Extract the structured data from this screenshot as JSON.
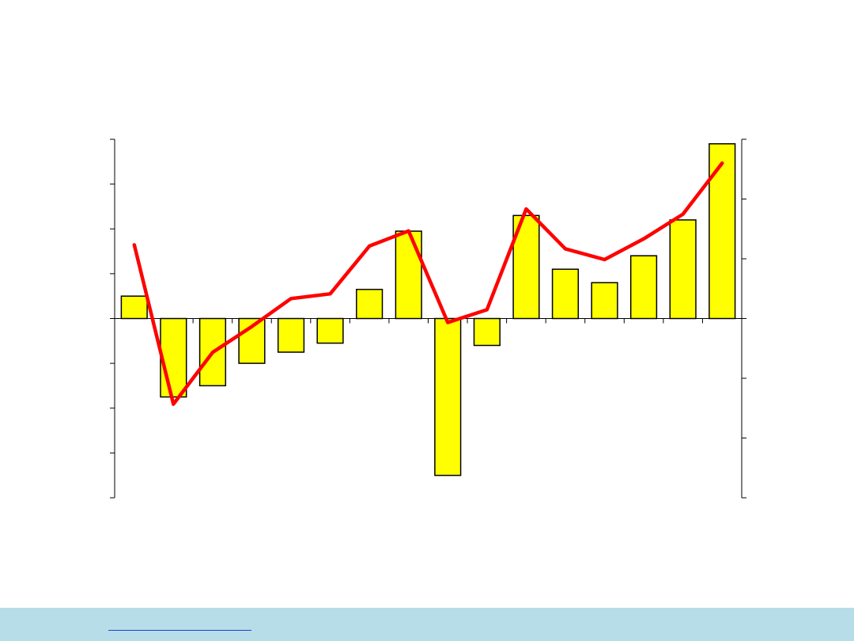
{
  "chart_data": {
    "type": "bar+line",
    "title": "",
    "categories": [
      "",
      "",
      "",
      "",
      "",
      "",
      "",
      "",
      "",
      "",
      "",
      "",
      "",
      "",
      "",
      ""
    ],
    "series": [
      {
        "type": "bar",
        "axis": "left",
        "color": "#ffff00",
        "values": [
          1.0,
          -3.5,
          -3.0,
          -2.0,
          -1.5,
          -1.1,
          1.3,
          3.9,
          -7.0,
          -1.2,
          4.6,
          2.2,
          1.6,
          2.8,
          4.4,
          7.8
        ]
      },
      {
        "type": "line",
        "axis": "right",
        "color": "#ff0000",
        "values": [
          1.85,
          -2.15,
          -0.85,
          -0.2,
          0.5,
          0.62,
          1.82,
          2.2,
          -0.1,
          0.22,
          2.75,
          1.75,
          1.48,
          2.0,
          2.62,
          3.9
        ]
      }
    ],
    "y_left": {
      "min": -8,
      "max": 8,
      "tick_step": 2,
      "tick_labels": []
    },
    "y_right": {
      "min": -4.5,
      "max": 4.5,
      "tick_step": 1.5,
      "tick_labels": []
    },
    "grid": false,
    "legend": "none"
  },
  "footer": {
    "link_text": ""
  }
}
